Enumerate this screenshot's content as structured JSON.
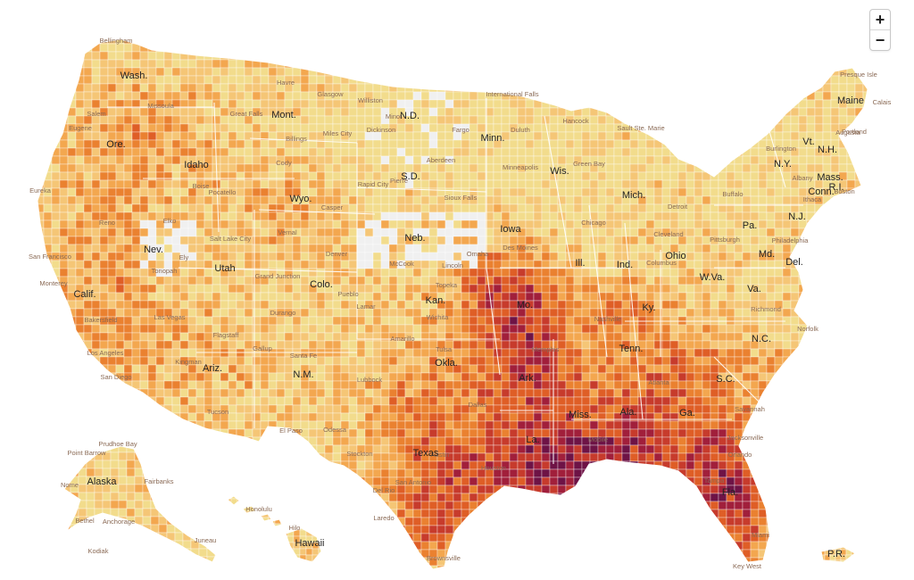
{
  "controls": {
    "zoom_in": "+",
    "zoom_out": "−"
  },
  "palette": {
    "c0": "#f0f0f0",
    "c1": "#f2dc8c",
    "c2": "#f5c676",
    "c3": "#f3a74f",
    "c4": "#ea8130",
    "c5": "#df5e26",
    "c6": "#c73b2c",
    "c7": "#a11f3b",
    "c8": "#6e1346",
    "border": "#ffffff"
  },
  "state_labels": [
    "Wash.",
    "Ore.",
    "Calif.",
    "Nev.",
    "Idaho",
    "Mont.",
    "Wyo.",
    "Utah",
    "Ariz.",
    "Colo.",
    "N.M.",
    "N.D.",
    "S.D.",
    "Neb.",
    "Kan.",
    "Okla.",
    "Texas",
    "Minn.",
    "Iowa",
    "Mo.",
    "Ark.",
    "La.",
    "Wis.",
    "Ill.",
    "Mich.",
    "Ind.",
    "Ohio",
    "Ky.",
    "Tenn.",
    "Miss.",
    "Ala.",
    "Ga.",
    "Fla.",
    "S.C.",
    "N.C.",
    "Va.",
    "W.Va.",
    "Pa.",
    "N.Y.",
    "Vt.",
    "N.H.",
    "Maine",
    "Mass.",
    "Conn.",
    "R.I.",
    "N.J.",
    "Del.",
    "Md.",
    "Alaska",
    "Hawaii",
    "P.R."
  ],
  "city_labels": [
    "Bellingham",
    "Havre",
    "Glasgow",
    "Williston",
    "Minot",
    "International Falls",
    "Hancock",
    "Sault Ste. Marie",
    "Presque Isle",
    "Calais",
    "Augusta",
    "Missoula",
    "Great Falls",
    "Billings",
    "Miles City",
    "Dickinson",
    "Fargo",
    "Duluth",
    "Aberdeen",
    "Pierre",
    "Sioux Falls",
    "Minneapolis",
    "Green Bay",
    "Eugene",
    "Salem",
    "Boise",
    "Pocatello",
    "Cody",
    "Rapid City",
    "Casper",
    "Eureka",
    "Reno",
    "Elko",
    "Ely",
    "Salt Lake City",
    "Vernal",
    "San Francisco",
    "Monterey",
    "Tonopah",
    "Bakersfield",
    "Las Vegas",
    "Los Angeles",
    "San Diego",
    "Flagstaff",
    "Kingman",
    "Tucson",
    "Gallup",
    "Santa Fe",
    "El Paso",
    "Durango",
    "Grand Junction",
    "Denver",
    "Pueblo",
    "Lamar",
    "Lincoln",
    "Omaha",
    "McCook",
    "Topeka",
    "Wichita",
    "Tulsa",
    "Amarillo",
    "Lubbock",
    "Dallas",
    "Austin",
    "San Antonio",
    "Houston",
    "Brownsville",
    "Laredo",
    "Stockton",
    "Odessa",
    "Del Rio",
    "Des Moines",
    "Chicago",
    "Detroit",
    "Cleveland",
    "Pittsburgh",
    "Columbus",
    "Richmond",
    "Norfolk",
    "Nashville",
    "Memphis",
    "Atlanta",
    "Savannah",
    "Tampa",
    "Miami",
    "Key West",
    "Jacksonville",
    "Mobile",
    "Orlando",
    "Boston",
    "Philadelphia",
    "Albany",
    "Ithaca",
    "Buffalo",
    "Burlington",
    "Portland",
    "Point Barrow",
    "Prudhoe Bay",
    "Nome",
    "Fairbanks",
    "Bethel",
    "Anchorage",
    "Juneau",
    "Honolulu",
    "Hilo",
    "Kodiak"
  ]
}
